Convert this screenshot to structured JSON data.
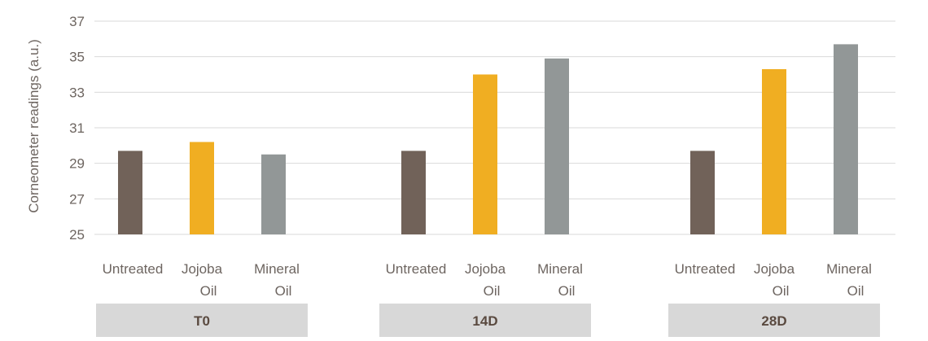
{
  "chart_data": {
    "type": "bar",
    "ylabel": "Corneometer readings (a.u.)",
    "ylim": [
      25,
      37
    ],
    "yticks": [
      25,
      27,
      29,
      31,
      33,
      35,
      37
    ],
    "grid": true,
    "categories": [
      "Untreated",
      "Jojoba Oil",
      "Mineral Oil"
    ],
    "category_lines": [
      [
        "Untreated"
      ],
      [
        "Jojoba",
        "Oil"
      ],
      [
        "Mineral",
        "Oil"
      ]
    ],
    "groups": [
      {
        "label": "T0",
        "values": [
          29.7,
          30.2,
          29.5
        ]
      },
      {
        "label": "14D",
        "values": [
          29.7,
          34.0,
          34.9
        ]
      },
      {
        "label": "28D",
        "values": [
          29.7,
          34.3,
          35.7
        ]
      }
    ],
    "colors": [
      "#716259",
      "#f0ae22",
      "#929797"
    ],
    "group_box_color": "#d8d8d8",
    "grid_color": "#d9d9d9"
  }
}
